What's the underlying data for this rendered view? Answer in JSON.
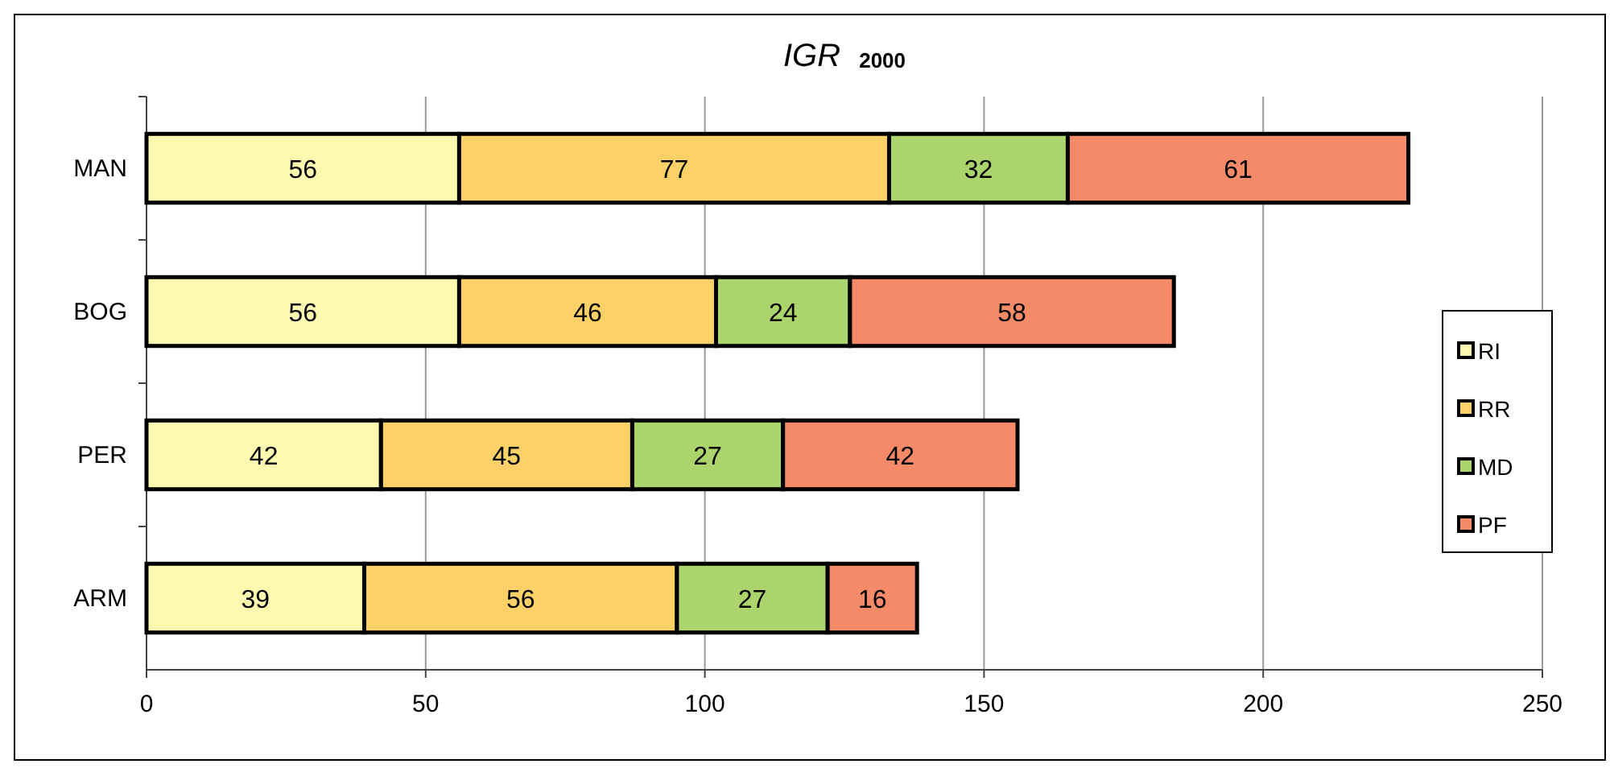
{
  "chart_data": {
    "type": "bar",
    "title": "IGR $_{2000}$",
    "orientation": "horizontal",
    "stacked": true,
    "categories": [
      "MAN",
      "BOG",
      "PER",
      "ARM"
    ],
    "series": [
      {
        "name": "RI",
        "color": "#fdf9b0",
        "values": [
          56,
          56,
          42,
          39
        ]
      },
      {
        "name": "RR",
        "color": "#fdd068",
        "values": [
          77,
          46,
          45,
          56
        ]
      },
      {
        "name": "MD",
        "color": "#acd46c",
        "values": [
          32,
          24,
          27,
          27
        ]
      },
      {
        "name": "PF",
        "color": "#f58a68",
        "values": [
          61,
          58,
          42,
          16
        ]
      }
    ],
    "xlim": [
      0,
      250
    ],
    "xticks": [
      0,
      50,
      100,
      150,
      200,
      250
    ],
    "grid": "x",
    "legend": "right",
    "data_labels": true
  }
}
